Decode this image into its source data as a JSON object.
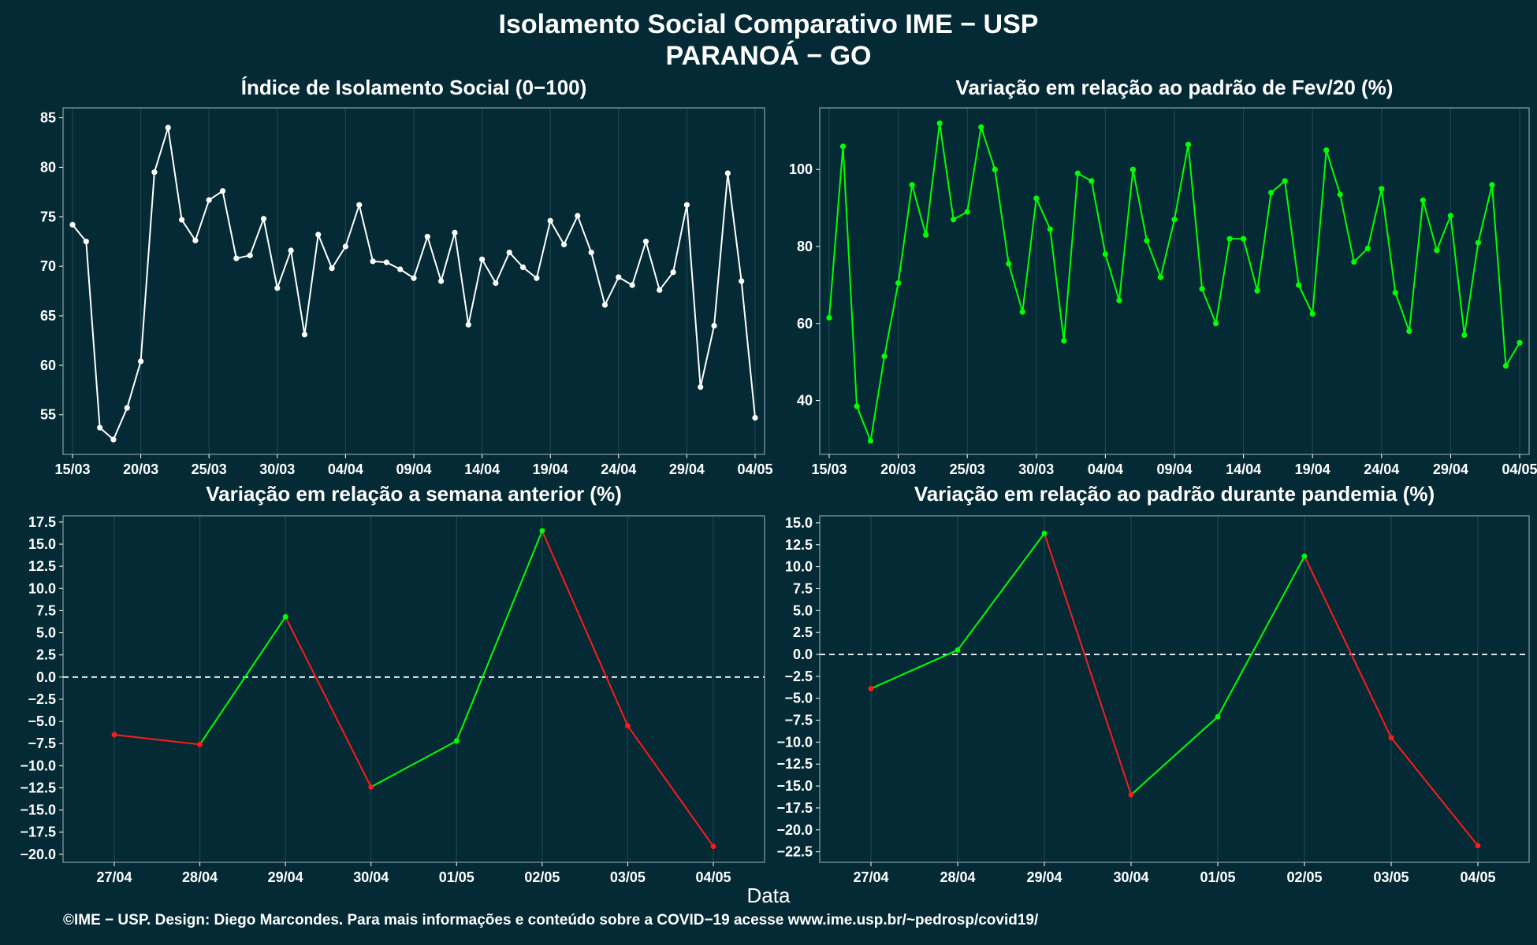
{
  "title": "Isolamento Social Comparativo IME − USP",
  "subtitle": "PARANOÁ − GO",
  "xlabel": "Data",
  "footer": "©IME − USP. Design: Diego Marcondes. Para mais informações e conteúdo sobre a COVID−19 acesse www.ime.usp.br/~pedrosp/covid19/",
  "colors": {
    "background": "#042a36",
    "white_series": "#ffffff",
    "green_series": "#00ff00",
    "red_series": "#ff1a1a",
    "grid": "#1e4450",
    "zero_line": "#ffffff"
  },
  "chart_data": [
    {
      "type": "line",
      "title": "Índice de Isolamento Social (0−100)",
      "color": "white",
      "x": [
        "15/03",
        "16/03",
        "17/03",
        "18/03",
        "19/03",
        "20/03",
        "21/03",
        "22/03",
        "23/03",
        "24/03",
        "25/03",
        "26/03",
        "27/03",
        "28/03",
        "29/03",
        "30/03",
        "31/03",
        "01/04",
        "02/04",
        "03/04",
        "04/04",
        "05/04",
        "06/04",
        "07/04",
        "08/04",
        "09/04",
        "10/04",
        "11/04",
        "12/04",
        "13/04",
        "14/04",
        "15/04",
        "16/04",
        "17/04",
        "18/04",
        "19/04",
        "20/04",
        "21/04",
        "22/04",
        "23/04",
        "24/04",
        "25/04",
        "26/04",
        "27/04",
        "28/04",
        "29/04",
        "30/04",
        "01/05",
        "02/05",
        "03/05",
        "04/05"
      ],
      "values": [
        74.2,
        72.5,
        53.7,
        52.5,
        55.7,
        60.4,
        79.5,
        84.0,
        74.7,
        72.6,
        76.7,
        77.6,
        70.8,
        71.1,
        74.8,
        67.8,
        71.6,
        63.1,
        73.2,
        69.8,
        72.0,
        76.2,
        70.5,
        70.4,
        69.7,
        68.8,
        73.0,
        68.5,
        73.4,
        64.1,
        70.7,
        68.3,
        71.4,
        69.9,
        68.8,
        74.6,
        72.2,
        75.1,
        71.4,
        66.1,
        68.9,
        68.1,
        72.5,
        67.6,
        69.4,
        76.2,
        57.8,
        64.0,
        79.4,
        68.5,
        54.7
      ],
      "xticks": [
        "15/03",
        "20/03",
        "25/03",
        "30/03",
        "04/04",
        "09/04",
        "14/04",
        "19/04",
        "24/04",
        "29/04",
        "04/05"
      ],
      "yticks": [
        "55",
        "60",
        "65",
        "70",
        "75",
        "80",
        "85"
      ],
      "ylim": [
        51,
        86
      ]
    },
    {
      "type": "line",
      "title": "Variação em relação ao padrão de Fev/20 (%)",
      "color": "green",
      "x": [
        "15/03",
        "16/03",
        "17/03",
        "18/03",
        "19/03",
        "20/03",
        "21/03",
        "22/03",
        "23/03",
        "24/03",
        "25/03",
        "26/03",
        "27/03",
        "28/03",
        "29/03",
        "30/03",
        "31/03",
        "01/04",
        "02/04",
        "03/04",
        "04/04",
        "05/04",
        "06/04",
        "07/04",
        "08/04",
        "09/04",
        "10/04",
        "11/04",
        "12/04",
        "13/04",
        "14/04",
        "15/04",
        "16/04",
        "17/04",
        "18/04",
        "19/04",
        "20/04",
        "21/04",
        "22/04",
        "23/04",
        "24/04",
        "25/04",
        "26/04",
        "27/04",
        "28/04",
        "29/04",
        "30/04",
        "01/05",
        "02/05",
        "03/05",
        "04/05"
      ],
      "values": [
        61.5,
        106.0,
        38.5,
        29.5,
        51.5,
        70.5,
        96.0,
        83.0,
        112.0,
        87.0,
        89.0,
        111.0,
        100.0,
        75.5,
        63.0,
        92.5,
        84.5,
        55.5,
        99.0,
        97.0,
        78.0,
        66.0,
        100.0,
        81.5,
        72.0,
        87.0,
        106.5,
        69.0,
        60.0,
        82.0,
        82.0,
        68.5,
        94.0,
        97.0,
        70.0,
        62.5,
        105.0,
        93.5,
        76.0,
        79.5,
        95.0,
        68.0,
        58.0,
        92.0,
        79.0,
        88.0,
        57.0,
        81.0,
        96.0,
        49.0,
        55.0
      ],
      "xticks": [
        "15/03",
        "20/03",
        "25/03",
        "30/03",
        "04/04",
        "09/04",
        "14/04",
        "19/04",
        "24/04",
        "29/04",
        "04/05"
      ],
      "yticks": [
        "40",
        "60",
        "80",
        "100"
      ],
      "ylim": [
        26,
        116
      ]
    },
    {
      "type": "line",
      "title": "Variação em relação a semana anterior (%)",
      "color": "green when rising, red when falling",
      "x": [
        "27/04",
        "28/04",
        "29/04",
        "30/04",
        "01/05",
        "02/05",
        "03/05",
        "04/05"
      ],
      "values": [
        -6.5,
        -7.6,
        6.8,
        -12.4,
        -7.2,
        16.5,
        -5.5,
        -19.1
      ],
      "yticks": [
        "17.5",
        "15.0",
        "12.5",
        "10.0",
        "7.5",
        "5.0",
        "2.5",
        "0.0",
        "−2.5",
        "−5.0",
        "−7.5",
        "−10.0",
        "−12.5",
        "−15.0",
        "−17.5",
        "−20.0"
      ],
      "ylim": [
        -20.9,
        18.2
      ],
      "reference_line": 0
    },
    {
      "type": "line",
      "title": "Variação em relação ao padrão durante pandemia (%)",
      "color": "green when rising, red when falling",
      "x": [
        "27/04",
        "28/04",
        "29/04",
        "30/04",
        "01/05",
        "02/05",
        "03/05",
        "04/05"
      ],
      "values": [
        -3.9,
        0.5,
        13.8,
        -16.0,
        -7.1,
        11.2,
        -9.5,
        -21.8
      ],
      "yticks": [
        "15.0",
        "12.5",
        "10.0",
        "7.5",
        "5.0",
        "2.5",
        "0.0",
        "−2.5",
        "−5.0",
        "−7.5",
        "−10.0",
        "−12.5",
        "−15.0",
        "−17.5",
        "−20.0",
        "−22.5"
      ],
      "ylim": [
        -23.7,
        15.8
      ],
      "reference_line": 0
    }
  ]
}
